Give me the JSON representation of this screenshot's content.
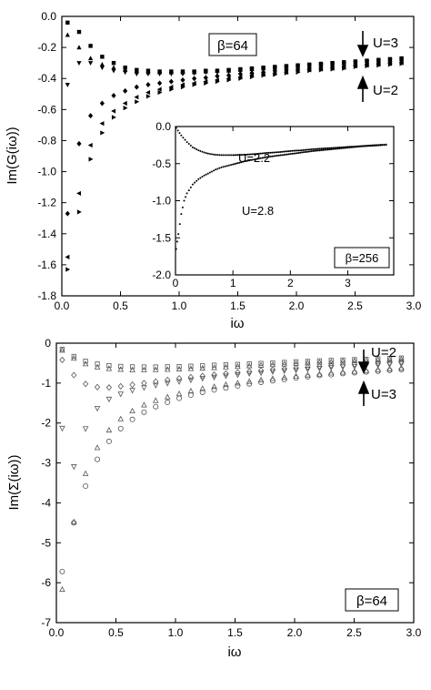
{
  "chart_data": [
    {
      "id": "greens",
      "type": "scatter",
      "xlabel": "iω",
      "ylabel": "Im(G(iω))",
      "xlim": [
        0,
        3.0
      ],
      "ylim": [
        -1.8,
        0.0
      ],
      "xticks": [
        0.0,
        0.5,
        1.0,
        1.5,
        2.0,
        2.5,
        3.0
      ],
      "xtick_labels": [
        "0.0",
        "0.5",
        "1.0",
        "1.5",
        "2.0",
        "2.5",
        "3.0"
      ],
      "yticks": [
        0.0,
        -0.2,
        -0.4,
        -0.6,
        -0.8,
        -1.0,
        -1.2,
        -1.4,
        -1.6,
        -1.8
      ],
      "ytick_labels": [
        "0.0",
        "-0.2",
        "-0.4",
        "-0.6",
        "-0.8",
        "-1.0",
        "-1.2",
        "-1.4",
        "-1.6",
        "-1.8"
      ],
      "x": [
        0.049,
        0.147,
        0.245,
        0.344,
        0.442,
        0.54,
        0.638,
        0.736,
        0.834,
        0.933,
        1.031,
        1.129,
        1.227,
        1.325,
        1.423,
        1.522,
        1.62,
        1.718,
        1.816,
        1.914,
        2.012,
        2.11,
        2.209,
        2.307,
        2.405,
        2.503,
        2.601,
        2.7,
        2.798,
        2.896
      ],
      "series": [
        {
          "marker": "square",
          "values": [
            -0.04,
            -0.1,
            -0.19,
            -0.26,
            -0.3,
            -0.33,
            -0.345,
            -0.35,
            -0.355,
            -0.355,
            -0.355,
            -0.355,
            -0.35,
            -0.35,
            -0.345,
            -0.34,
            -0.335,
            -0.33,
            -0.325,
            -0.32,
            -0.315,
            -0.31,
            -0.305,
            -0.3,
            -0.295,
            -0.29,
            -0.285,
            -0.28,
            -0.275,
            -0.27
          ]
        },
        {
          "marker": "triangle-up",
          "values": [
            -0.12,
            -0.2,
            -0.27,
            -0.31,
            -0.33,
            -0.345,
            -0.355,
            -0.36,
            -0.36,
            -0.36,
            -0.36,
            -0.36,
            -0.355,
            -0.35,
            -0.35,
            -0.345,
            -0.34,
            -0.335,
            -0.33,
            -0.325,
            -0.32,
            -0.315,
            -0.31,
            -0.305,
            -0.3,
            -0.295,
            -0.29,
            -0.285,
            -0.28,
            -0.275
          ]
        },
        {
          "marker": "triangle-down",
          "values": [
            -0.44,
            -0.3,
            -0.3,
            -0.33,
            -0.35,
            -0.36,
            -0.37,
            -0.37,
            -0.37,
            -0.37,
            -0.37,
            -0.365,
            -0.36,
            -0.36,
            -0.355,
            -0.35,
            -0.345,
            -0.34,
            -0.335,
            -0.33,
            -0.325,
            -0.32,
            -0.315,
            -0.31,
            -0.305,
            -0.3,
            -0.295,
            -0.29,
            -0.285,
            -0.28
          ]
        },
        {
          "marker": "diamond",
          "values": [
            -1.27,
            -0.82,
            -0.64,
            -0.56,
            -0.51,
            -0.48,
            -0.455,
            -0.44,
            -0.43,
            -0.42,
            -0.41,
            -0.4,
            -0.395,
            -0.385,
            -0.38,
            -0.37,
            -0.365,
            -0.36,
            -0.35,
            -0.345,
            -0.34,
            -0.335,
            -0.33,
            -0.325,
            -0.32,
            -0.315,
            -0.31,
            -0.305,
            -0.3,
            -0.295
          ]
        },
        {
          "marker": "triangle-left",
          "values": [
            -1.55,
            -1.14,
            -0.83,
            -0.69,
            -0.61,
            -0.56,
            -0.52,
            -0.49,
            -0.47,
            -0.455,
            -0.44,
            -0.43,
            -0.42,
            -0.41,
            -0.4,
            -0.39,
            -0.38,
            -0.375,
            -0.365,
            -0.36,
            -0.35,
            -0.345,
            -0.34,
            -0.335,
            -0.33,
            -0.32,
            -0.315,
            -0.31,
            -0.305,
            -0.3
          ]
        },
        {
          "marker": "triangle-right",
          "values": [
            -1.63,
            -1.26,
            -0.92,
            -0.75,
            -0.65,
            -0.59,
            -0.55,
            -0.515,
            -0.49,
            -0.47,
            -0.455,
            -0.44,
            -0.43,
            -0.42,
            -0.41,
            -0.4,
            -0.39,
            -0.38,
            -0.375,
            -0.365,
            -0.36,
            -0.35,
            -0.345,
            -0.34,
            -0.335,
            -0.325,
            -0.32,
            -0.315,
            -0.31,
            -0.305
          ]
        }
      ],
      "annotations": {
        "beta": "β=64",
        "top_label": "U=3",
        "bottom_label": "U=2"
      },
      "inset": {
        "type": "line",
        "xlim": [
          0,
          3.8
        ],
        "ylim": [
          -2.0,
          0.0
        ],
        "xticks": [
          0,
          1,
          2,
          3
        ],
        "xtick_labels": [
          "0",
          "1",
          "2",
          "3"
        ],
        "yticks": [
          0.0,
          -0.5,
          -1.0,
          -1.5,
          -2.0
        ],
        "ytick_labels": [
          "0.0",
          "-0.5",
          "-1.0",
          "-1.5",
          "-2.0"
        ],
        "beta": "β=256",
        "series": [
          {
            "name": "U=2.2",
            "x": [
              0.012,
              0.1,
              0.2,
              0.3,
              0.4,
              0.5,
              0.6,
              0.7,
              0.8,
              0.9,
              1.0,
              1.2,
              1.4,
              1.6,
              1.8,
              2.0,
              2.2,
              2.4,
              2.6,
              2.8,
              3.0,
              3.2,
              3.4,
              3.6,
              3.7
            ],
            "values": [
              -0.02,
              -0.12,
              -0.21,
              -0.28,
              -0.32,
              -0.35,
              -0.37,
              -0.38,
              -0.385,
              -0.385,
              -0.385,
              -0.38,
              -0.37,
              -0.355,
              -0.345,
              -0.33,
              -0.32,
              -0.305,
              -0.295,
              -0.285,
              -0.275,
              -0.265,
              -0.255,
              -0.245,
              -0.24
            ]
          },
          {
            "name": "U=2.8",
            "x": [
              0.012,
              0.05,
              0.1,
              0.15,
              0.2,
              0.3,
              0.4,
              0.5,
              0.6,
              0.7,
              0.8,
              0.9,
              1.0,
              1.2,
              1.4,
              1.6,
              1.8,
              2.0,
              2.2,
              2.4,
              2.6,
              2.8,
              3.0,
              3.2,
              3.4,
              3.6,
              3.7
            ],
            "values": [
              -1.65,
              -1.45,
              -1.18,
              -1.0,
              -0.9,
              -0.78,
              -0.71,
              -0.66,
              -0.62,
              -0.58,
              -0.55,
              -0.53,
              -0.51,
              -0.47,
              -0.44,
              -0.41,
              -0.39,
              -0.37,
              -0.35,
              -0.33,
              -0.315,
              -0.3,
              -0.285,
              -0.27,
              -0.26,
              -0.25,
              -0.245
            ]
          }
        ]
      }
    },
    {
      "id": "selfenergy",
      "type": "scatter",
      "xlabel": "iω",
      "ylabel": "Im(Σ(iω))",
      "xlim": [
        0,
        3.0
      ],
      "ylim": [
        -7,
        0
      ],
      "xticks": [
        0.0,
        0.5,
        1.0,
        1.5,
        2.0,
        2.5,
        3.0
      ],
      "xtick_labels": [
        "0.0",
        "0.5",
        "1.0",
        "1.5",
        "2.0",
        "2.5",
        "3.0"
      ],
      "yticks": [
        0,
        -1,
        -2,
        -3,
        -4,
        -5,
        -6,
        -7
      ],
      "ytick_labels": [
        "0",
        "-1",
        "-2",
        "-3",
        "-4",
        "-5",
        "-6",
        "-7"
      ],
      "x": [
        0.049,
        0.147,
        0.245,
        0.344,
        0.442,
        0.54,
        0.638,
        0.736,
        0.834,
        0.933,
        1.031,
        1.129,
        1.227,
        1.325,
        1.423,
        1.522,
        1.62,
        1.718,
        1.816,
        1.914,
        2.012,
        2.11,
        2.209,
        2.307,
        2.405,
        2.503,
        2.601,
        2.7,
        2.798,
        2.896
      ],
      "series": [
        {
          "marker": "open-square",
          "values": [
            -0.15,
            -0.33,
            -0.45,
            -0.52,
            -0.56,
            -0.58,
            -0.59,
            -0.595,
            -0.595,
            -0.59,
            -0.585,
            -0.575,
            -0.565,
            -0.55,
            -0.54,
            -0.53,
            -0.515,
            -0.505,
            -0.49,
            -0.48,
            -0.465,
            -0.455,
            -0.44,
            -0.43,
            -0.42,
            -0.41,
            -0.4,
            -0.39,
            -0.38,
            -0.37
          ]
        },
        {
          "marker": "open-triangle-up",
          "values": [
            -0.18,
            -0.38,
            -0.52,
            -0.6,
            -0.64,
            -0.66,
            -0.67,
            -0.67,
            -0.665,
            -0.66,
            -0.65,
            -0.64,
            -0.63,
            -0.615,
            -0.6,
            -0.585,
            -0.57,
            -0.555,
            -0.54,
            -0.525,
            -0.51,
            -0.495,
            -0.48,
            -0.47,
            -0.455,
            -0.445,
            -0.43,
            -0.42,
            -0.41,
            -0.4
          ]
        },
        {
          "marker": "open-diamond",
          "values": [
            -0.42,
            -0.8,
            -1.02,
            -1.1,
            -1.11,
            -1.08,
            -1.04,
            -1.0,
            -0.96,
            -0.92,
            -0.88,
            -0.85,
            -0.82,
            -0.79,
            -0.76,
            -0.73,
            -0.71,
            -0.68,
            -0.66,
            -0.64,
            -0.62,
            -0.6,
            -0.58,
            -0.56,
            -0.55,
            -0.53,
            -0.52,
            -0.5,
            -0.49,
            -0.47
          ]
        },
        {
          "marker": "open-triangle-down",
          "values": [
            -2.13,
            -3.09,
            -2.14,
            -1.63,
            -1.4,
            -1.27,
            -1.18,
            -1.11,
            -1.05,
            -1.0,
            -0.96,
            -0.92,
            -0.88,
            -0.85,
            -0.82,
            -0.79,
            -0.76,
            -0.74,
            -0.71,
            -0.69,
            -0.67,
            -0.65,
            -0.63,
            -0.61,
            -0.59,
            -0.58,
            -0.56,
            -0.55,
            -0.53,
            -0.52
          ]
        },
        {
          "marker": "open-triangle-up",
          "values": [
            -6.17,
            -4.48,
            -3.27,
            -2.62,
            -2.18,
            -1.9,
            -1.7,
            -1.55,
            -1.44,
            -1.35,
            -1.27,
            -1.2,
            -1.14,
            -1.09,
            -1.04,
            -1.0,
            -0.96,
            -0.92,
            -0.89,
            -0.86,
            -0.83,
            -0.8,
            -0.78,
            -0.75,
            -0.73,
            -0.71,
            -0.69,
            -0.67,
            -0.65,
            -0.63
          ]
        },
        {
          "marker": "open-circle",
          "values": [
            -5.72,
            -4.5,
            -3.58,
            -2.91,
            -2.46,
            -2.14,
            -1.91,
            -1.73,
            -1.59,
            -1.48,
            -1.38,
            -1.3,
            -1.23,
            -1.17,
            -1.12,
            -1.07,
            -1.02,
            -0.98,
            -0.94,
            -0.91,
            -0.87,
            -0.84,
            -0.81,
            -0.79,
            -0.76,
            -0.74,
            -0.72,
            -0.7,
            -0.68,
            -0.66
          ]
        }
      ],
      "annotations": {
        "beta": "β=64",
        "top_label": "U=2",
        "bottom_label": "U=3"
      }
    }
  ]
}
